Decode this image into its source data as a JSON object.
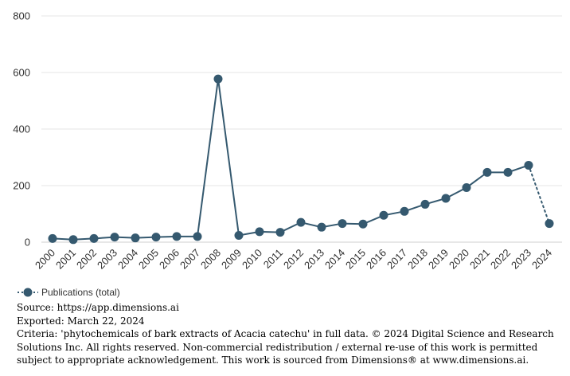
{
  "chart_data": {
    "type": "line",
    "title": "",
    "xlabel": "",
    "ylabel": "",
    "ylim": [
      0,
      800
    ],
    "yticks": [
      0,
      200,
      400,
      600,
      800
    ],
    "grid": "horizontal",
    "legend_position": "bottom-left",
    "categories": [
      "2000",
      "2001",
      "2002",
      "2003",
      "2004",
      "2005",
      "2006",
      "2007",
      "2008",
      "2009",
      "2010",
      "2011",
      "2012",
      "2013",
      "2014",
      "2015",
      "2016",
      "2017",
      "2018",
      "2019",
      "2020",
      "2021",
      "2022",
      "2023",
      "2024"
    ],
    "series": [
      {
        "name": "Publications (total)",
        "color": "#35596f",
        "values": [
          13,
          9,
          13,
          18,
          15,
          18,
          20,
          20,
          577,
          24,
          37,
          35,
          70,
          53,
          66,
          64,
          95,
          109,
          134,
          155,
          193,
          247,
          247,
          272,
          66
        ],
        "dotted_from_index": 23
      }
    ]
  },
  "footer": {
    "source": "Source: https://app.dimensions.ai",
    "exported": "Exported: March 22, 2024",
    "criteria": "Criteria: 'phytochemicals of bark extracts of Acacia catechu' in full data. © 2024 Digital Science and Research Solutions Inc. All rights reserved. Non-commercial redistribution / external re-use of this work is permitted subject to appropriate acknowledgement. This work is sourced from Dimensions® at www.dimensions.ai."
  }
}
